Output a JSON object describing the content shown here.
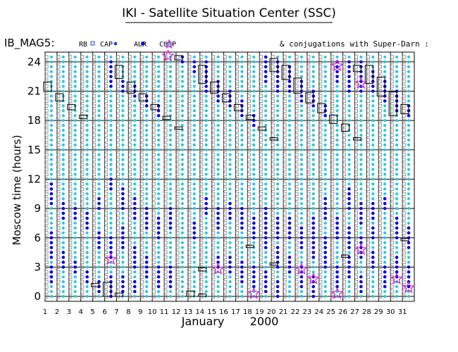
{
  "page": {
    "title": "IKI - Satellite Situation Center (SSC)",
    "dataset": "IB_MAG5:",
    "conjugations": "& conjugations with Super-Darn :",
    "legend": [
      {
        "key": "rb",
        "label": "RB",
        "symbol": "square",
        "color": "#000000"
      },
      {
        "key": "cap",
        "label": "CAP",
        "symbol": "square",
        "color": "#2b3fd6"
      },
      {
        "key": "aur",
        "label": "AUR",
        "symbol": "dot",
        "color": "#0000e8"
      },
      {
        "key": "cusp",
        "label": "CUSP",
        "symbol": "dot",
        "color": "#26c8e0"
      },
      {
        "key": "sd",
        "label": "",
        "symbol": "star",
        "color": "#cc22cc"
      }
    ]
  },
  "chart_data": {
    "type": "scatter",
    "title": "IKI - Satellite Situation Center (SSC)",
    "ylabel": "Moscow time (hours)",
    "xlabel": "January",
    "year": "2000",
    "xlim": [
      1,
      32
    ],
    "ylim": [
      -0.5,
      25
    ],
    "yticks": [
      0,
      3,
      6,
      9,
      12,
      15,
      18,
      21,
      24
    ],
    "xticks": [
      1,
      2,
      3,
      4,
      5,
      6,
      7,
      8,
      9,
      10,
      11,
      12,
      13,
      14,
      15,
      16,
      17,
      18,
      19,
      20,
      21,
      22,
      23,
      24,
      25,
      26,
      27,
      28,
      29,
      30,
      31
    ],
    "grid": true,
    "colors": {
      "rb": "#808080",
      "cap": "#000000",
      "aur": "#0000e8",
      "cusp": "#26c8e0",
      "star": "#cc22cc"
    },
    "days": [
      {
        "day": 2,
        "aur": [
          [
            9.5,
            11.5
          ],
          [
            4,
            6.5
          ],
          [
            1.5,
            3
          ]
        ],
        "cap_boxes": [
          [
            21,
            21.8
          ]
        ]
      },
      {
        "day": 3,
        "aur": [
          [
            8,
            9.5
          ],
          [
            3,
            4.5
          ]
        ],
        "cap_boxes": [
          [
            20,
            20.6
          ]
        ]
      },
      {
        "day": 4,
        "aur": [
          [
            8,
            9
          ],
          [
            2.5,
            3.5
          ]
        ],
        "cap_boxes": [
          [
            19.1,
            19.5
          ]
        ]
      },
      {
        "day": 5,
        "aur": [
          [
            7,
            8.5
          ],
          [
            1.5,
            2.5
          ]
        ],
        "cap_boxes": [
          [
            18.2,
            18.4
          ]
        ]
      },
      {
        "day": 6,
        "aur": [
          [
            9,
            10
          ],
          [
            5,
            6.5
          ],
          [
            0.5,
            1.5
          ]
        ],
        "cap_boxes": [
          [
            1,
            1.2
          ]
        ]
      },
      {
        "day": 7,
        "aur": [
          [
            21.5,
            24
          ],
          [
            11,
            12
          ],
          [
            4,
            6
          ],
          [
            -0.3,
            2
          ]
        ],
        "cap_boxes": [
          [
            0,
            1.3
          ]
        ]
      },
      {
        "day": 8,
        "aur": [
          [
            21,
            22
          ],
          [
            9,
            11
          ],
          [
            5,
            7
          ],
          [
            0.5,
            2
          ]
        ],
        "cap_boxes": [
          [
            22.3,
            23.5
          ],
          [
            0,
            0.2
          ]
        ]
      },
      {
        "day": 9,
        "aur": [
          [
            20.5,
            21.5
          ],
          [
            8,
            10
          ],
          [
            3,
            5
          ],
          [
            0.5,
            1.5
          ]
        ],
        "cap_boxes": [
          [
            20.8,
            21.8
          ]
        ]
      },
      {
        "day": 10,
        "aur": [
          [
            19.5,
            20.5
          ],
          [
            7,
            9
          ],
          [
            2,
            4
          ]
        ],
        "cap_boxes": [
          [
            20,
            20.6
          ]
        ]
      },
      {
        "day": 11,
        "aur": [
          [
            18.5,
            19.5
          ],
          [
            6,
            8
          ],
          [
            1,
            3
          ]
        ],
        "cap_boxes": [
          [
            19.1,
            19.5
          ]
        ]
      },
      {
        "day": 12,
        "aur": [
          [
            7,
            9
          ],
          [
            1,
            3
          ]
        ],
        "cap_boxes": [
          [
            18.1,
            18.3
          ]
        ]
      },
      {
        "day": 13,
        "aur": [
          [
            24,
            24.5
          ]
        ],
        "cap_boxes": [
          [
            24.2,
            24.5
          ],
          [
            17.1,
            17.2
          ]
        ]
      },
      {
        "day": 14,
        "aur": [
          [
            23,
            24
          ],
          [
            6,
            7.5
          ]
        ],
        "cap_boxes": [
          [
            0,
            0.4
          ]
        ]
      },
      {
        "day": 15,
        "aur": [
          [
            21,
            24
          ],
          [
            8.5,
            10
          ]
        ],
        "cap_boxes": [
          [
            21.8,
            23.5
          ],
          [
            2.6,
            2.8
          ],
          [
            0,
            0.1
          ]
        ]
      },
      {
        "day": 16,
        "aur": [
          [
            20,
            22
          ],
          [
            7,
            9
          ],
          [
            3,
            4
          ]
        ],
        "cap_boxes": [
          [
            20.8,
            21.8
          ]
        ]
      },
      {
        "day": 17,
        "aur": [
          [
            19.5,
            21
          ],
          [
            8,
            9.5
          ],
          [
            2.5,
            4
          ]
        ],
        "cap_boxes": [
          [
            19.9,
            20.6
          ]
        ]
      },
      {
        "day": 18,
        "aur": [
          [
            18.5,
            20
          ],
          [
            7,
            9
          ],
          [
            1.5,
            3.5
          ]
        ],
        "cap_boxes": [
          [
            19,
            19.5
          ]
        ]
      },
      {
        "day": 19,
        "aur": [
          [
            17.5,
            18.5
          ],
          [
            6,
            8
          ],
          [
            1,
            3
          ]
        ],
        "cap_boxes": [
          [
            18.1,
            18.4
          ],
          [
            5,
            5.1
          ]
        ]
      },
      {
        "day": 20,
        "aur": [
          [
            22,
            24.5
          ],
          [
            7,
            9
          ],
          [
            5,
            6.5
          ],
          [
            0.5,
            2.5
          ]
        ],
        "cap_boxes": [
          [
            17,
            17.2
          ]
        ]
      },
      {
        "day": 21,
        "aur": [
          [
            21,
            24
          ],
          [
            6,
            8
          ],
          [
            3,
            5
          ],
          [
            -0.3,
            1.5
          ]
        ],
        "cap_boxes": [
          [
            23,
            24.2
          ],
          [
            16,
            16.1
          ],
          [
            3.2,
            3.3
          ]
        ]
      },
      {
        "day": 22,
        "aur": [
          [
            21,
            23.5
          ],
          [
            6,
            8
          ],
          [
            2.5,
            4
          ]
        ],
        "cap_boxes": [
          [
            22.2,
            23.5
          ]
        ]
      },
      {
        "day": 23,
        "aur": [
          [
            20,
            22
          ],
          [
            5,
            7
          ],
          [
            1,
            3
          ]
        ],
        "cap_boxes": [
          [
            20.8,
            22.2
          ]
        ]
      },
      {
        "day": 24,
        "aur": [
          [
            19.5,
            21
          ],
          [
            4,
            8
          ],
          [
            0,
            2
          ]
        ],
        "cap_boxes": [
          [
            19.8,
            20.7
          ]
        ]
      },
      {
        "day": 25,
        "aur": [
          [
            18.5,
            19.5
          ],
          [
            8,
            10
          ],
          [
            3,
            6
          ]
        ],
        "cap_boxes": [
          [
            18.8,
            19.6
          ]
        ]
      },
      {
        "day": 26,
        "aur": [
          [
            22,
            24
          ],
          [
            6,
            8
          ],
          [
            1,
            3
          ]
        ],
        "cap_boxes": [
          [
            17.7,
            18.4
          ]
        ]
      },
      {
        "day": 27,
        "aur": [
          [
            21,
            24
          ],
          [
            9,
            11
          ],
          [
            5,
            7
          ],
          [
            2,
            4
          ]
        ],
        "cap_boxes": [
          [
            16.9,
            17.5
          ],
          [
            4,
            4.1
          ]
        ]
      },
      {
        "day": 28,
        "aur": [
          [
            21,
            24
          ],
          [
            7.5,
            9.5
          ],
          [
            4,
            6
          ],
          [
            0.5,
            2
          ]
        ],
        "cap_boxes": [
          [
            23,
            23.5
          ],
          [
            16,
            16.1
          ]
        ]
      },
      {
        "day": 29,
        "aur": [
          [
            21,
            23
          ],
          [
            8,
            9.5
          ],
          [
            6,
            7
          ],
          [
            3,
            4.5
          ]
        ],
        "cap_boxes": [
          [
            21.8,
            23.5
          ]
        ]
      },
      {
        "day": 30,
        "aur": [
          [
            20,
            22
          ],
          [
            9,
            10
          ],
          [
            1,
            3
          ]
        ],
        "cap_boxes": [
          [
            20.5,
            22.3
          ]
        ]
      },
      {
        "day": 31,
        "aur": [
          [
            19,
            21
          ],
          [
            6,
            8
          ],
          [
            2,
            4
          ]
        ],
        "cap_boxes": [
          [
            18.5,
            20.8
          ]
        ]
      },
      {
        "day": 32,
        "aur": [
          [
            18.5,
            19.5
          ],
          [
            5,
            7
          ],
          [
            1,
            3
          ]
        ],
        "cap_boxes": [
          [
            18.7,
            19.5
          ],
          [
            5.7,
            5.8
          ]
        ]
      }
    ],
    "stars": [
      {
        "day": 11.8,
        "hour": 24.6
      },
      {
        "day": 7,
        "hour": 3.8
      },
      {
        "day": 16,
        "hour": 2.8
      },
      {
        "day": 19,
        "hour": 0.3
      },
      {
        "day": 23,
        "hour": 2.8
      },
      {
        "day": 24,
        "hour": 1.8
      },
      {
        "day": 26,
        "hour": 23.6
      },
      {
        "day": 26,
        "hour": 0.3
      },
      {
        "day": 28,
        "hour": 21.8
      },
      {
        "day": 28,
        "hour": 4.8
      },
      {
        "day": 31,
        "hour": 1.8
      },
      {
        "day": 32,
        "hour": 0.9
      }
    ]
  }
}
